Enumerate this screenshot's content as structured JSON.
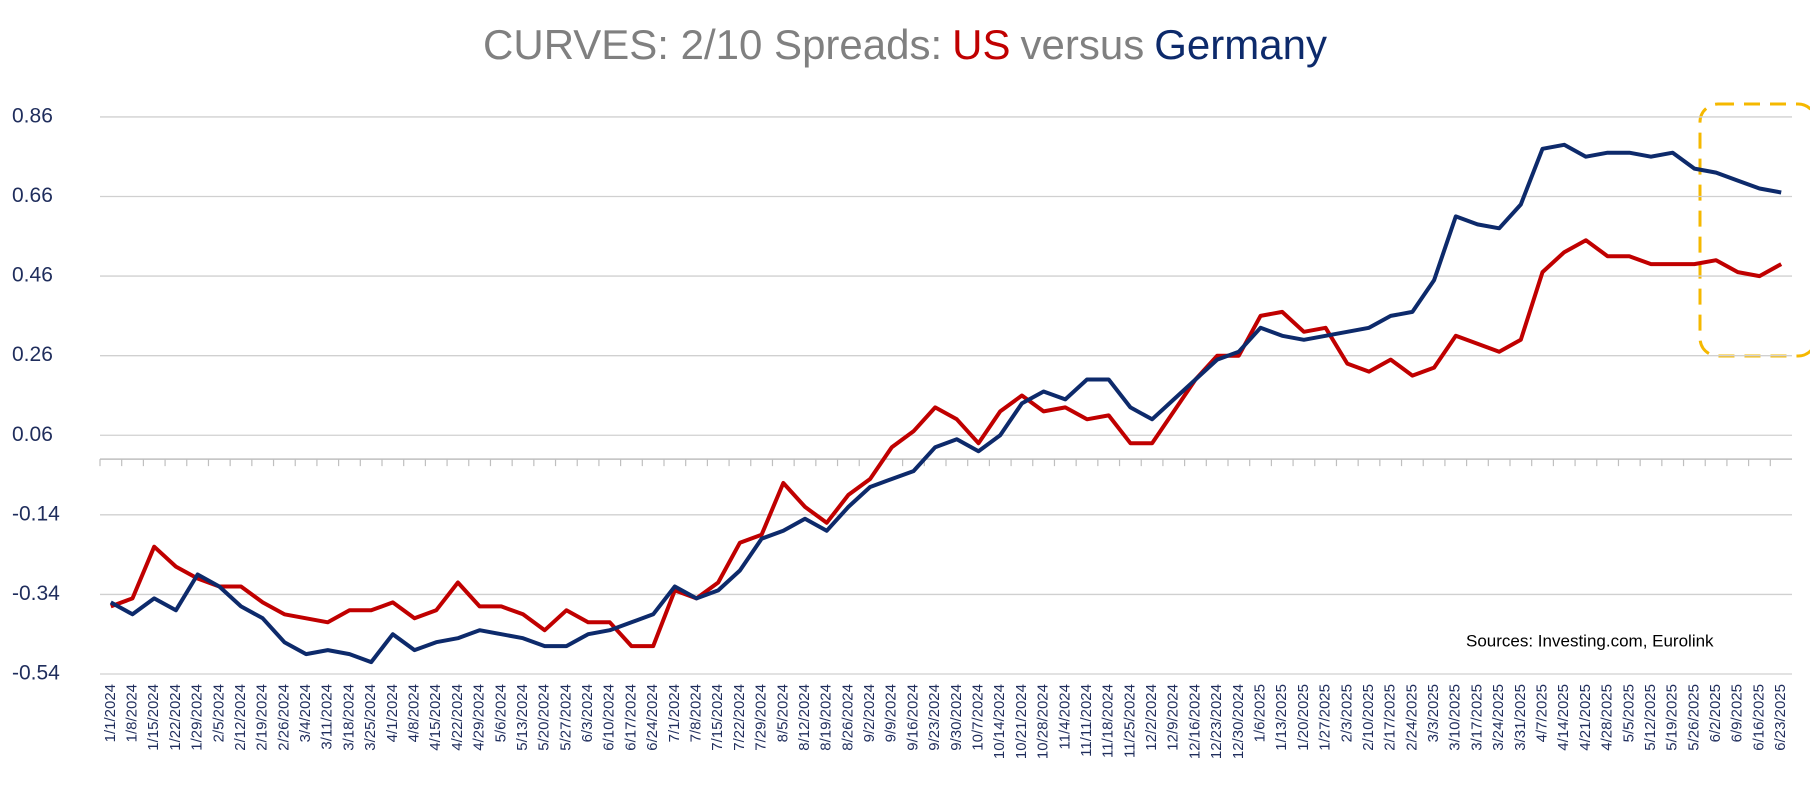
{
  "chart_data": {
    "type": "line",
    "title": "CURVES: 2/10 Spreads:",
    "title_joiner": "versus",
    "annotation": "Sources: Investing.com, Eurolink",
    "categories": [
      "1/1/2024",
      "1/8/2024",
      "1/15/2024",
      "1/22/2024",
      "1/29/2024",
      "2/5/2024",
      "2/12/2024",
      "2/19/2024",
      "2/26/2024",
      "3/4/2024",
      "3/11/2024",
      "3/18/2024",
      "3/25/2024",
      "4/1/2024",
      "4/8/2024",
      "4/15/2024",
      "4/22/2024",
      "4/29/2024",
      "5/6/2024",
      "5/13/2024",
      "5/20/2024",
      "5/27/2024",
      "6/3/2024",
      "6/10/2024",
      "6/17/2024",
      "6/24/2024",
      "7/1/2024",
      "7/8/2024",
      "7/15/2024",
      "7/22/2024",
      "7/29/2024",
      "8/5/2024",
      "8/12/2024",
      "8/19/2024",
      "8/26/2024",
      "9/2/2024",
      "9/9/2024",
      "9/16/2024",
      "9/23/2024",
      "9/30/2024",
      "10/7/2024",
      "10/14/2024",
      "10/21/2024",
      "10/28/2024",
      "11/4/2024",
      "11/11/2024",
      "11/18/2024",
      "11/25/2024",
      "12/2/2024",
      "12/9/2024",
      "12/16/2024",
      "12/23/2024",
      "12/30/2024",
      "1/6/2025",
      "1/13/2025",
      "1/20/2025",
      "1/27/2025",
      "2/3/2025",
      "2/10/2025",
      "2/17/2025",
      "2/24/2025",
      "3/3/2025",
      "3/10/2025",
      "3/17/2025",
      "3/24/2025",
      "3/31/2025",
      "4/7/2025",
      "4/14/2025",
      "4/21/2025",
      "4/28/2025",
      "5/5/2025",
      "5/12/2025",
      "5/19/2025",
      "5/26/2025",
      "6/2/2025",
      "6/9/2025",
      "6/16/2025",
      "6/23/2025"
    ],
    "series": [
      {
        "name": "US",
        "color": "#c00000",
        "values": [
          -0.37,
          -0.35,
          -0.22,
          -0.27,
          -0.3,
          -0.32,
          -0.32,
          -0.36,
          -0.39,
          -0.4,
          -0.41,
          -0.38,
          -0.38,
          -0.36,
          -0.4,
          -0.38,
          -0.31,
          -0.37,
          -0.37,
          -0.39,
          -0.43,
          -0.38,
          -0.41,
          -0.41,
          -0.47,
          -0.47,
          -0.33,
          -0.35,
          -0.31,
          -0.21,
          -0.19,
          -0.06,
          -0.12,
          -0.16,
          -0.09,
          -0.05,
          0.03,
          0.07,
          0.13,
          0.1,
          0.04,
          0.12,
          0.16,
          0.12,
          0.13,
          0.1,
          0.11,
          0.04,
          0.04,
          0.12,
          0.2,
          0.26,
          0.26,
          0.36,
          0.37,
          0.32,
          0.33,
          0.24,
          0.22,
          0.25,
          0.21,
          0.23,
          0.31,
          0.29,
          0.27,
          0.3,
          0.47,
          0.52,
          0.55,
          0.51,
          0.51,
          0.49,
          0.49,
          0.49,
          0.5,
          0.47,
          0.46,
          0.49
        ]
      },
      {
        "name": "Germany",
        "color": "#0d2a6b",
        "values": [
          -0.36,
          -0.39,
          -0.35,
          -0.38,
          -0.29,
          -0.32,
          -0.37,
          -0.4,
          -0.46,
          -0.49,
          -0.48,
          -0.49,
          -0.51,
          -0.44,
          -0.48,
          -0.46,
          -0.45,
          -0.43,
          -0.44,
          -0.45,
          -0.47,
          -0.47,
          -0.44,
          -0.43,
          -0.41,
          -0.39,
          -0.32,
          -0.35,
          -0.33,
          -0.28,
          -0.2,
          -0.18,
          -0.15,
          -0.18,
          -0.12,
          -0.07,
          -0.05,
          -0.03,
          0.03,
          0.05,
          0.02,
          0.06,
          0.14,
          0.17,
          0.15,
          0.2,
          0.2,
          0.13,
          0.1,
          0.15,
          0.2,
          0.25,
          0.27,
          0.33,
          0.31,
          0.3,
          0.31,
          0.32,
          0.33,
          0.36,
          0.37,
          0.45,
          0.61,
          0.59,
          0.58,
          0.64,
          0.78,
          0.79,
          0.76,
          0.77,
          0.77,
          0.76,
          0.77,
          0.73,
          0.72,
          0.7,
          0.68,
          0.67
        ]
      }
    ],
    "ylim": [
      -0.54,
      0.9
    ],
    "yticks": [
      0.86,
      0.66,
      0.46,
      0.26,
      0.06,
      -0.14,
      -0.34,
      -0.54
    ],
    "grid": true
  }
}
